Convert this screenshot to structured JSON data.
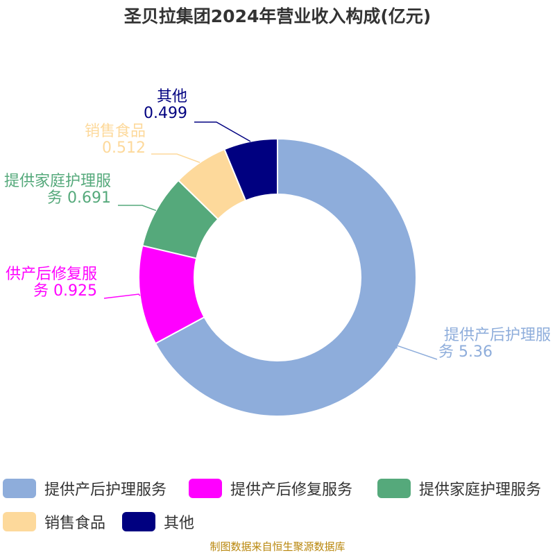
{
  "title": "圣贝拉集团2024年营业收入构成(亿元)",
  "source": "制图数据来自恒生聚源数据库",
  "chart_data": {
    "type": "pie",
    "style": "donut",
    "title": "圣贝拉集团2024年营业收入构成(亿元)",
    "series": [
      {
        "name": "提供产后护理服务",
        "value": 5.36,
        "value_label": "5.36",
        "color": "#8eaddb",
        "label_lines": [
          "提供产后护理服",
          "务 5.36"
        ]
      },
      {
        "name": "提供产后修复服务",
        "value": 0.925,
        "value_label": "0.925",
        "color": "#ff00ff",
        "label_lines": [
          "供产后修复服",
          "务 0.925"
        ]
      },
      {
        "name": "提供家庭护理服务",
        "value": 0.691,
        "value_label": "0.691",
        "color": "#55a97b",
        "label_lines": [
          "提供家庭护理服",
          "务 0.691"
        ]
      },
      {
        "name": "销售食品",
        "value": 0.512,
        "value_label": "0.512",
        "color": "#fdd99b",
        "label_lines": [
          "销售食品",
          "0.512"
        ]
      },
      {
        "name": "其他",
        "value": 0.499,
        "value_label": "0.499",
        "color": "#000080",
        "label_lines": [
          "其他",
          "0.499"
        ]
      }
    ],
    "legend": {
      "placement": "bottom",
      "items": [
        "提供产后护理服务",
        "提供产后修复服务",
        "提供家庭护理服务",
        "销售食品",
        "其他"
      ]
    }
  }
}
